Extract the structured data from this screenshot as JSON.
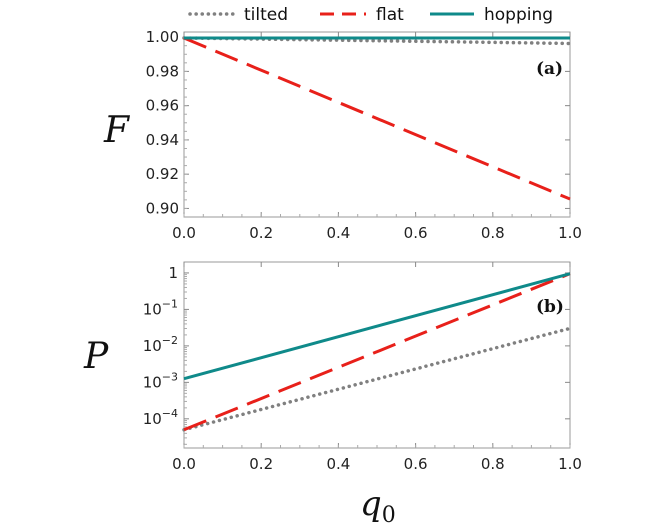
{
  "legend": [
    {
      "name": "tilted",
      "color": "#808080",
      "dash": "dotted"
    },
    {
      "name": "flat",
      "color": "#e8201a",
      "dash": "dashed"
    },
    {
      "name": "hopping",
      "color": "#0f8a8a",
      "dash": "solid"
    }
  ],
  "chart_data": [
    {
      "type": "line",
      "panel_label": "(a)",
      "ylabel": "F",
      "xlabel": "",
      "xlim": [
        0,
        1
      ],
      "ylim": [
        0.895,
        1.003
      ],
      "x_ticks": [
        "0.0",
        "0.2",
        "0.4",
        "0.6",
        "0.8",
        "1.0"
      ],
      "y_ticks": [
        "0.90",
        "0.92",
        "0.94",
        "0.96",
        "0.98",
        "1.00"
      ],
      "series": [
        {
          "name": "tilted",
          "x": [
            0,
            1
          ],
          "values": [
            0.9995,
            0.9963
          ]
        },
        {
          "name": "flat",
          "x": [
            0,
            1
          ],
          "values": [
            0.9995,
            0.9055
          ]
        },
        {
          "name": "hopping",
          "x": [
            0,
            1
          ],
          "values": [
            0.9995,
            0.9995
          ]
        }
      ]
    },
    {
      "type": "line",
      "panel_label": "(b)",
      "ylabel": "P",
      "xlabel": "q0",
      "yscale": "log",
      "xlim": [
        0,
        1
      ],
      "ylim_log10": [
        -4.8,
        0.3
      ],
      "x_ticks": [
        "0.0",
        "0.2",
        "0.4",
        "0.6",
        "0.8",
        "1.0"
      ],
      "y_ticks": [
        {
          "base": "1",
          "exp": ""
        },
        {
          "base": "10",
          "exp": "−1"
        },
        {
          "base": "10",
          "exp": "−2"
        },
        {
          "base": "10",
          "exp": "−3"
        },
        {
          "base": "10",
          "exp": "−4"
        }
      ],
      "y_tick_log10": [
        0,
        -1,
        -2,
        -3,
        -4
      ],
      "series": [
        {
          "name": "tilted",
          "x": [
            0,
            1
          ],
          "log10_values": [
            -4.3,
            -1.52
          ]
        },
        {
          "name": "flat",
          "x": [
            0,
            1
          ],
          "log10_values": [
            -4.3,
            -0.02
          ]
        },
        {
          "name": "hopping",
          "x": [
            0,
            1
          ],
          "log10_values": [
            -2.9,
            -0.02
          ]
        }
      ]
    }
  ]
}
